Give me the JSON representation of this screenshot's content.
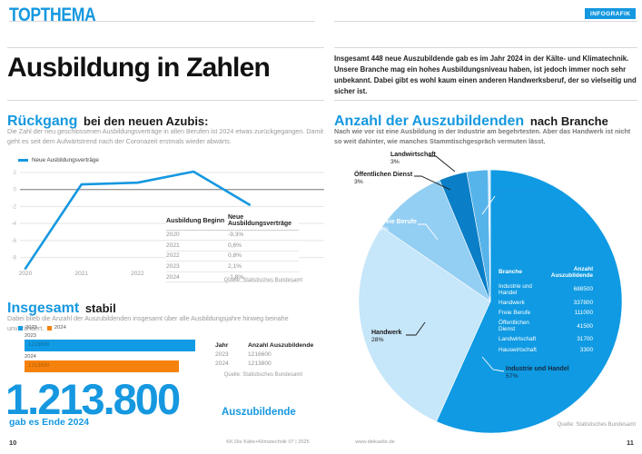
{
  "page": {
    "brand": "TOPTHEMA",
    "badge": "INFOGRAFIK",
    "title": "Ausbildung in Zahlen",
    "intro": "Insgesamt 448 neue Auszubildende gab es im Jahr 2024 in der Kälte- und Klimatechnik. Unsere Branche mag ein hohes Ausbildungsniveau haben, ist jedoch immer noch sehr unbekannt. Dabei gibt es wohl kaum einen anderen Handwerksberuf, der so vielseitig und sicher ist.",
    "footer": {
      "page_left": "10",
      "issue": "KK Die Kälte+Klimatechnik 07 | 2025",
      "website": "www.diekaelte.de",
      "page_right": "11"
    }
  },
  "decline_section": {
    "heading_accent": "Rückgang",
    "heading_rest": "bei den neuen Azubis:",
    "body": "Die Zahl der neu geschlossenen Ausbildungsverträge in allen Berufen ist 2024 etwas zurückgegangen. Damit geht es seit dem Aufwärtstrend nach der Coronazeit erstmals wieder abwärts.",
    "table": {
      "headers": [
        "Ausbildung Beginn",
        "Neue Ausbildungsverträge"
      ],
      "rows": [
        [
          "2020",
          "-9,3%"
        ],
        [
          "2021",
          "0,6%"
        ],
        [
          "2022",
          "0,8%"
        ],
        [
          "2023",
          "2,1%"
        ],
        [
          "2024",
          "-1,8%"
        ]
      ]
    },
    "source": "Quelle: Statistisches Bundesamt"
  },
  "stable_section": {
    "heading_accent": "Insgesamt",
    "heading_rest": "stabil",
    "body": "Dabei blieb die Anzahl der Auszubildenden insgesamt über alle Ausbildungsjahre hinweg beinahe unverändert.",
    "table": {
      "headers": [
        "Jahr",
        "Anzahl Auszubildende"
      ],
      "rows": [
        [
          "2023",
          "1216600"
        ],
        [
          "2024",
          "1213800"
        ]
      ]
    },
    "source": "Quelle: Statistisches Bundesamt",
    "big_number": "1.213.800",
    "big_number_caption": "gab es Ende 2024",
    "big_number_label": "Auszubildende"
  },
  "branche_section": {
    "heading_accent": "Anzahl der Auszubildenden",
    "heading_rest": "nach Branche",
    "body": "Nach wie vor ist eine Ausbildung in der Industrie am begehrtesten. Aber das Handwerk ist nicht so weit dahinter, wie manches Stammtischgespräch vermuten lässt.",
    "table": {
      "headers": [
        "Branche",
        "Anzahl Auszubildende"
      ],
      "rows": [
        [
          "Industrie und Handel",
          "688500"
        ],
        [
          "Handwerk",
          "337800"
        ],
        [
          "Freie Berufe",
          "111000"
        ],
        [
          "Öffentlichen Dienst",
          "41500"
        ],
        [
          "Landwirtschaft",
          "31700"
        ],
        [
          "Hauswirtschaft",
          "3300"
        ]
      ]
    },
    "source": "Quelle: Statistisches Bundesamt"
  },
  "chart_data": [
    {
      "type": "line",
      "legend": "Neue Ausbildungsverträge",
      "x": [
        "2020",
        "2021",
        "2022",
        "2023",
        "2024"
      ],
      "values": [
        -9.3,
        0.6,
        0.8,
        2.1,
        -1.8
      ],
      "yticks": [
        2,
        0,
        -2,
        -4,
        -6,
        -8
      ],
      "ylim": [
        -10,
        3
      ],
      "grid": true,
      "line_color": "#1598e0"
    },
    {
      "type": "bar",
      "orientation": "horizontal",
      "categories": [
        "2023",
        "2024"
      ],
      "values": [
        1216600,
        1213800
      ],
      "colors": [
        "#119be4",
        "#f5820d"
      ]
    },
    {
      "type": "pie",
      "labels": [
        "Industrie und Handel",
        "Handwerk",
        "Freie Berufe",
        "Öffentlichen Dienst",
        "Landwirtschaft",
        "Hauswirtschaft"
      ],
      "values": [
        688500,
        337800,
        111000,
        41500,
        31700,
        3300
      ],
      "percent_labels": [
        "57%",
        "28%",
        "9%",
        "3%",
        "3%",
        "0%"
      ],
      "colors": [
        "#0f9ae3",
        "#c6e6f9",
        "#93cef3",
        "#0a7ec6",
        "#56b4ea",
        "#d8ecfb"
      ],
      "start_angle_deg": -90,
      "direction": "clockwise"
    }
  ],
  "colors": {
    "accent_blue": "#1598e0",
    "orange": "#f5820d",
    "text_dark": "#1a1a1a",
    "text_gray": "#9a9a9a",
    "rule_gray": "#d8d8d8"
  }
}
